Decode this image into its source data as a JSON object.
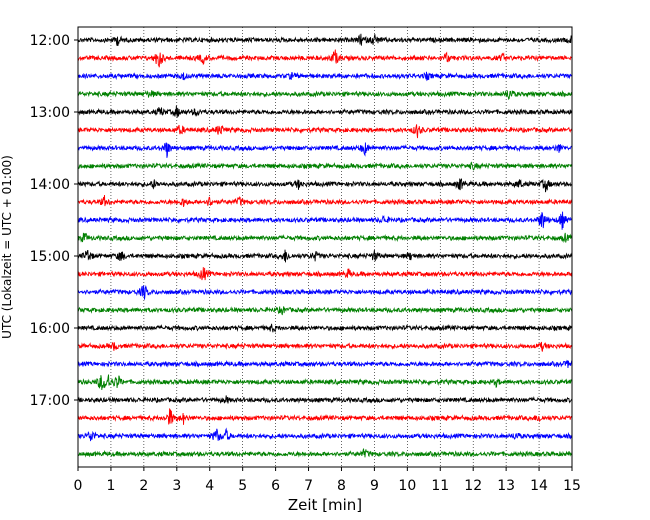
{
  "chart_data": {
    "type": "line",
    "title": "",
    "xlabel": "Zeit  [min]",
    "ylabel": "UTC (Lokalzeit = UTC + 01:00)",
    "xlim": [
      0,
      15
    ],
    "x_ticks": [
      "0",
      "1",
      "2",
      "3",
      "4",
      "5",
      "6",
      "7",
      "8",
      "9",
      "10",
      "11",
      "12",
      "13",
      "14",
      "15"
    ],
    "y_tick_labels": [
      "12:00",
      "13:00",
      "14:00",
      "15:00",
      "16:00",
      "17:00"
    ],
    "grid": "vertical dotted lines at each minute",
    "trace_colors": [
      "#000000",
      "#ff0000",
      "#0000ff",
      "#008000"
    ],
    "traces": [
      {
        "start": "12:00",
        "events": [
          [
            1.2,
            0.35
          ],
          [
            8.6,
            0.4
          ],
          [
            9.0,
            0.45
          ],
          [
            15.0,
            0.3
          ]
        ]
      },
      {
        "start": "12:15",
        "events": [
          [
            2.45,
            0.9
          ],
          [
            3.8,
            0.35
          ],
          [
            7.8,
            0.6
          ],
          [
            11.2,
            0.35
          ],
          [
            12.9,
            0.25
          ]
        ]
      },
      {
        "start": "12:30",
        "events": [
          [
            3.2,
            0.25
          ],
          [
            6.5,
            0.2
          ],
          [
            10.6,
            0.2
          ]
        ]
      },
      {
        "start": "12:45",
        "events": [
          [
            2.2,
            0.25
          ],
          [
            13.1,
            0.45
          ]
        ]
      },
      {
        "start": "13:00",
        "events": [
          [
            2.5,
            0.35
          ],
          [
            3.0,
            0.4
          ],
          [
            3.6,
            0.3
          ]
        ]
      },
      {
        "start": "13:15",
        "events": [
          [
            3.1,
            0.35
          ],
          [
            4.3,
            0.45
          ],
          [
            10.3,
            0.5
          ]
        ]
      },
      {
        "start": "13:30",
        "events": [
          [
            2.7,
            0.6
          ],
          [
            8.7,
            0.5
          ],
          [
            14.6,
            0.3
          ]
        ]
      },
      {
        "start": "13:45",
        "events": [
          [
            12.0,
            0.2
          ]
        ]
      },
      {
        "start": "14:00",
        "events": [
          [
            2.3,
            0.3
          ],
          [
            6.7,
            0.3
          ],
          [
            11.6,
            0.45
          ],
          [
            13.4,
            0.3
          ],
          [
            14.2,
            0.5
          ]
        ]
      },
      {
        "start": "14:15",
        "events": [
          [
            0.8,
            0.35
          ],
          [
            3.2,
            0.3
          ],
          [
            4.0,
            0.35
          ],
          [
            4.9,
            0.3
          ]
        ]
      },
      {
        "start": "14:30",
        "events": [
          [
            9.3,
            0.3
          ],
          [
            14.1,
            0.8
          ],
          [
            14.7,
            0.6
          ]
        ]
      },
      {
        "start": "14:45",
        "events": [
          [
            0.2,
            0.35
          ],
          [
            14.8,
            0.25
          ]
        ]
      },
      {
        "start": "15:00",
        "events": [
          [
            0.3,
            0.5
          ],
          [
            1.3,
            0.4
          ],
          [
            6.3,
            0.45
          ],
          [
            7.2,
            0.3
          ],
          [
            9.0,
            0.35
          ],
          [
            10.1,
            0.25
          ]
        ]
      },
      {
        "start": "15:15",
        "events": [
          [
            3.8,
            0.6
          ],
          [
            8.2,
            0.3
          ]
        ]
      },
      {
        "start": "15:30",
        "events": [
          [
            2.0,
            0.6
          ]
        ]
      },
      {
        "start": "15:45",
        "events": [
          [
            6.2,
            0.25
          ]
        ]
      },
      {
        "start": "16:00",
        "events": [
          [
            5.9,
            0.25
          ]
        ]
      },
      {
        "start": "16:15",
        "events": [
          [
            1.1,
            0.25
          ],
          [
            14.1,
            0.25
          ]
        ]
      },
      {
        "start": "16:30",
        "events": [
          [
            14.9,
            0.25
          ]
        ]
      },
      {
        "start": "16:45",
        "events": [
          [
            0.7,
            0.6
          ],
          [
            0.9,
            0.7
          ],
          [
            1.2,
            0.55
          ],
          [
            12.7,
            0.25
          ]
        ]
      },
      {
        "start": "17:00",
        "events": [
          [
            4.5,
            0.2
          ]
        ]
      },
      {
        "start": "17:15",
        "events": [
          [
            2.8,
            0.7
          ],
          [
            3.2,
            0.35
          ],
          [
            14.0,
            0.25
          ]
        ]
      },
      {
        "start": "17:30",
        "events": [
          [
            0.4,
            0.5
          ],
          [
            4.2,
            0.55
          ],
          [
            4.5,
            0.4
          ],
          [
            13.3,
            0.25
          ]
        ]
      },
      {
        "start": "17:45",
        "events": [
          [
            8.7,
            0.3
          ]
        ]
      }
    ]
  }
}
